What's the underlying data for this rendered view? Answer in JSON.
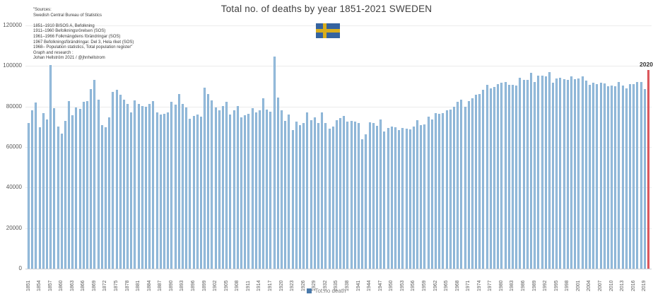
{
  "page": {
    "title": "Total no. of deaths by year 1851-2021 SWEDEN"
  },
  "sources": {
    "lines": [
      "\"Sources:",
      "Swedish Central Bureau of Statistics",
      "",
      "1851–1910 BISOS A, Befolkning",
      "1911–1960 Befolkningsrörelsen (SOS)",
      "1961–1966 Folkmängdens förändringar (SOS)",
      "1967 Befolkningsförändringar. Del 3, Hela riket (SOS)",
      "1968– Population statistics, Total population register\"",
      "Graph and research :",
      "Johan Hellström 2021 / @jhnhellstrom"
    ]
  },
  "flag": {
    "country": "Sweden",
    "blue": "#35639f",
    "yellow": "#d8ae1e"
  },
  "legend": {
    "label": "Tot.no death"
  },
  "annotation": {
    "label": "2020"
  },
  "colors": {
    "bar": "#86b3d9",
    "highlight": "#dc4b50",
    "gridline": "#ebebeb",
    "tick_text": "#595959",
    "title_text": "#3f3f3f"
  },
  "chart_data": {
    "type": "bar",
    "title": "Total no. of deaths by year 1851-2021 SWEDEN",
    "xlabel": "",
    "ylabel": "",
    "start_year": 1851,
    "end_year": 2020,
    "ylim": [
      0,
      120000
    ],
    "grid": true,
    "legend_position": "bottom",
    "legend": [
      "Tot.no death"
    ],
    "yticks": [
      0,
      20000,
      40000,
      60000,
      80000,
      100000,
      120000
    ],
    "xticks": [
      1851,
      1854,
      1857,
      1860,
      1863,
      1866,
      1869,
      1872,
      1875,
      1878,
      1881,
      1884,
      1887,
      1890,
      1893,
      1896,
      1899,
      1902,
      1905,
      1908,
      1911,
      1914,
      1917,
      1920,
      1923,
      1926,
      1929,
      1932,
      1935,
      1938,
      1941,
      1944,
      1947,
      1950,
      1953,
      1956,
      1959,
      1962,
      1965,
      1968,
      1971,
      1974,
      1977,
      1980,
      1983,
      1986,
      1989,
      1992,
      1995,
      1998,
      2001,
      2004,
      2007,
      2010,
      2013,
      2016,
      2019
    ],
    "highlight": {
      "year": 2020,
      "color": "#dc4b50",
      "label": "2020"
    },
    "values": [
      71700,
      78100,
      82100,
      69600,
      76900,
      73500,
      100300,
      79100,
      70000,
      66800,
      72800,
      82800,
      75700,
      79600,
      78900,
      82500,
      82600,
      88600,
      93200,
      83200,
      70800,
      69600,
      74800,
      87200,
      88100,
      85900,
      83400,
      81200,
      77000,
      83100,
      81400,
      80300,
      79900,
      81200,
      82700,
      77200,
      76000,
      76400,
      77000,
      82200,
      81100,
      86000,
      81400,
      79400,
      74000,
      75200,
      76100,
      74900,
      89200,
      86000,
      83000,
      79500,
      78200,
      80200,
      82300,
      76000,
      78000,
      80200,
      74500,
      75800,
      76500,
      79100,
      77000,
      78300,
      83900,
      78400,
      77400,
      104591,
      84500,
      78100,
      73000,
      76100,
      68300,
      72400,
      70900,
      72000,
      77100,
      73300,
      74700,
      71800,
      77100,
      71900,
      69100,
      70000,
      73300,
      74300,
      75400,
      72700,
      72900,
      72700,
      71910,
      63741,
      66105,
      72284,
      71901,
      70635,
      73579,
      67693,
      69537,
      70225,
      69799,
      68270,
      69553,
      69030,
      68634,
      70205,
      73132,
      70710,
      71019,
      75093,
      73555,
      76791,
      76460,
      76661,
      78194,
      78440,
      79783,
      82476,
      83352,
      80026,
      82717,
      84051,
      85640,
      86316,
      88208,
      90677,
      88893,
      89681,
      91074,
      91800,
      92034,
      90671,
      90791,
      90483,
      94032,
      93295,
      93307,
      96743,
      92110,
      95161,
      95202,
      94710,
      97008,
      91844,
      93929,
      94133,
      93326,
      93271,
      94726,
      93461,
      93752,
      95009,
      92961,
      90532,
      91710,
      91177,
      91729,
      91449,
      90080,
      90487,
      89938,
      91938,
      90402,
      88976,
      90907,
      90982,
      91972,
      92185,
      88766,
      98124
    ]
  }
}
